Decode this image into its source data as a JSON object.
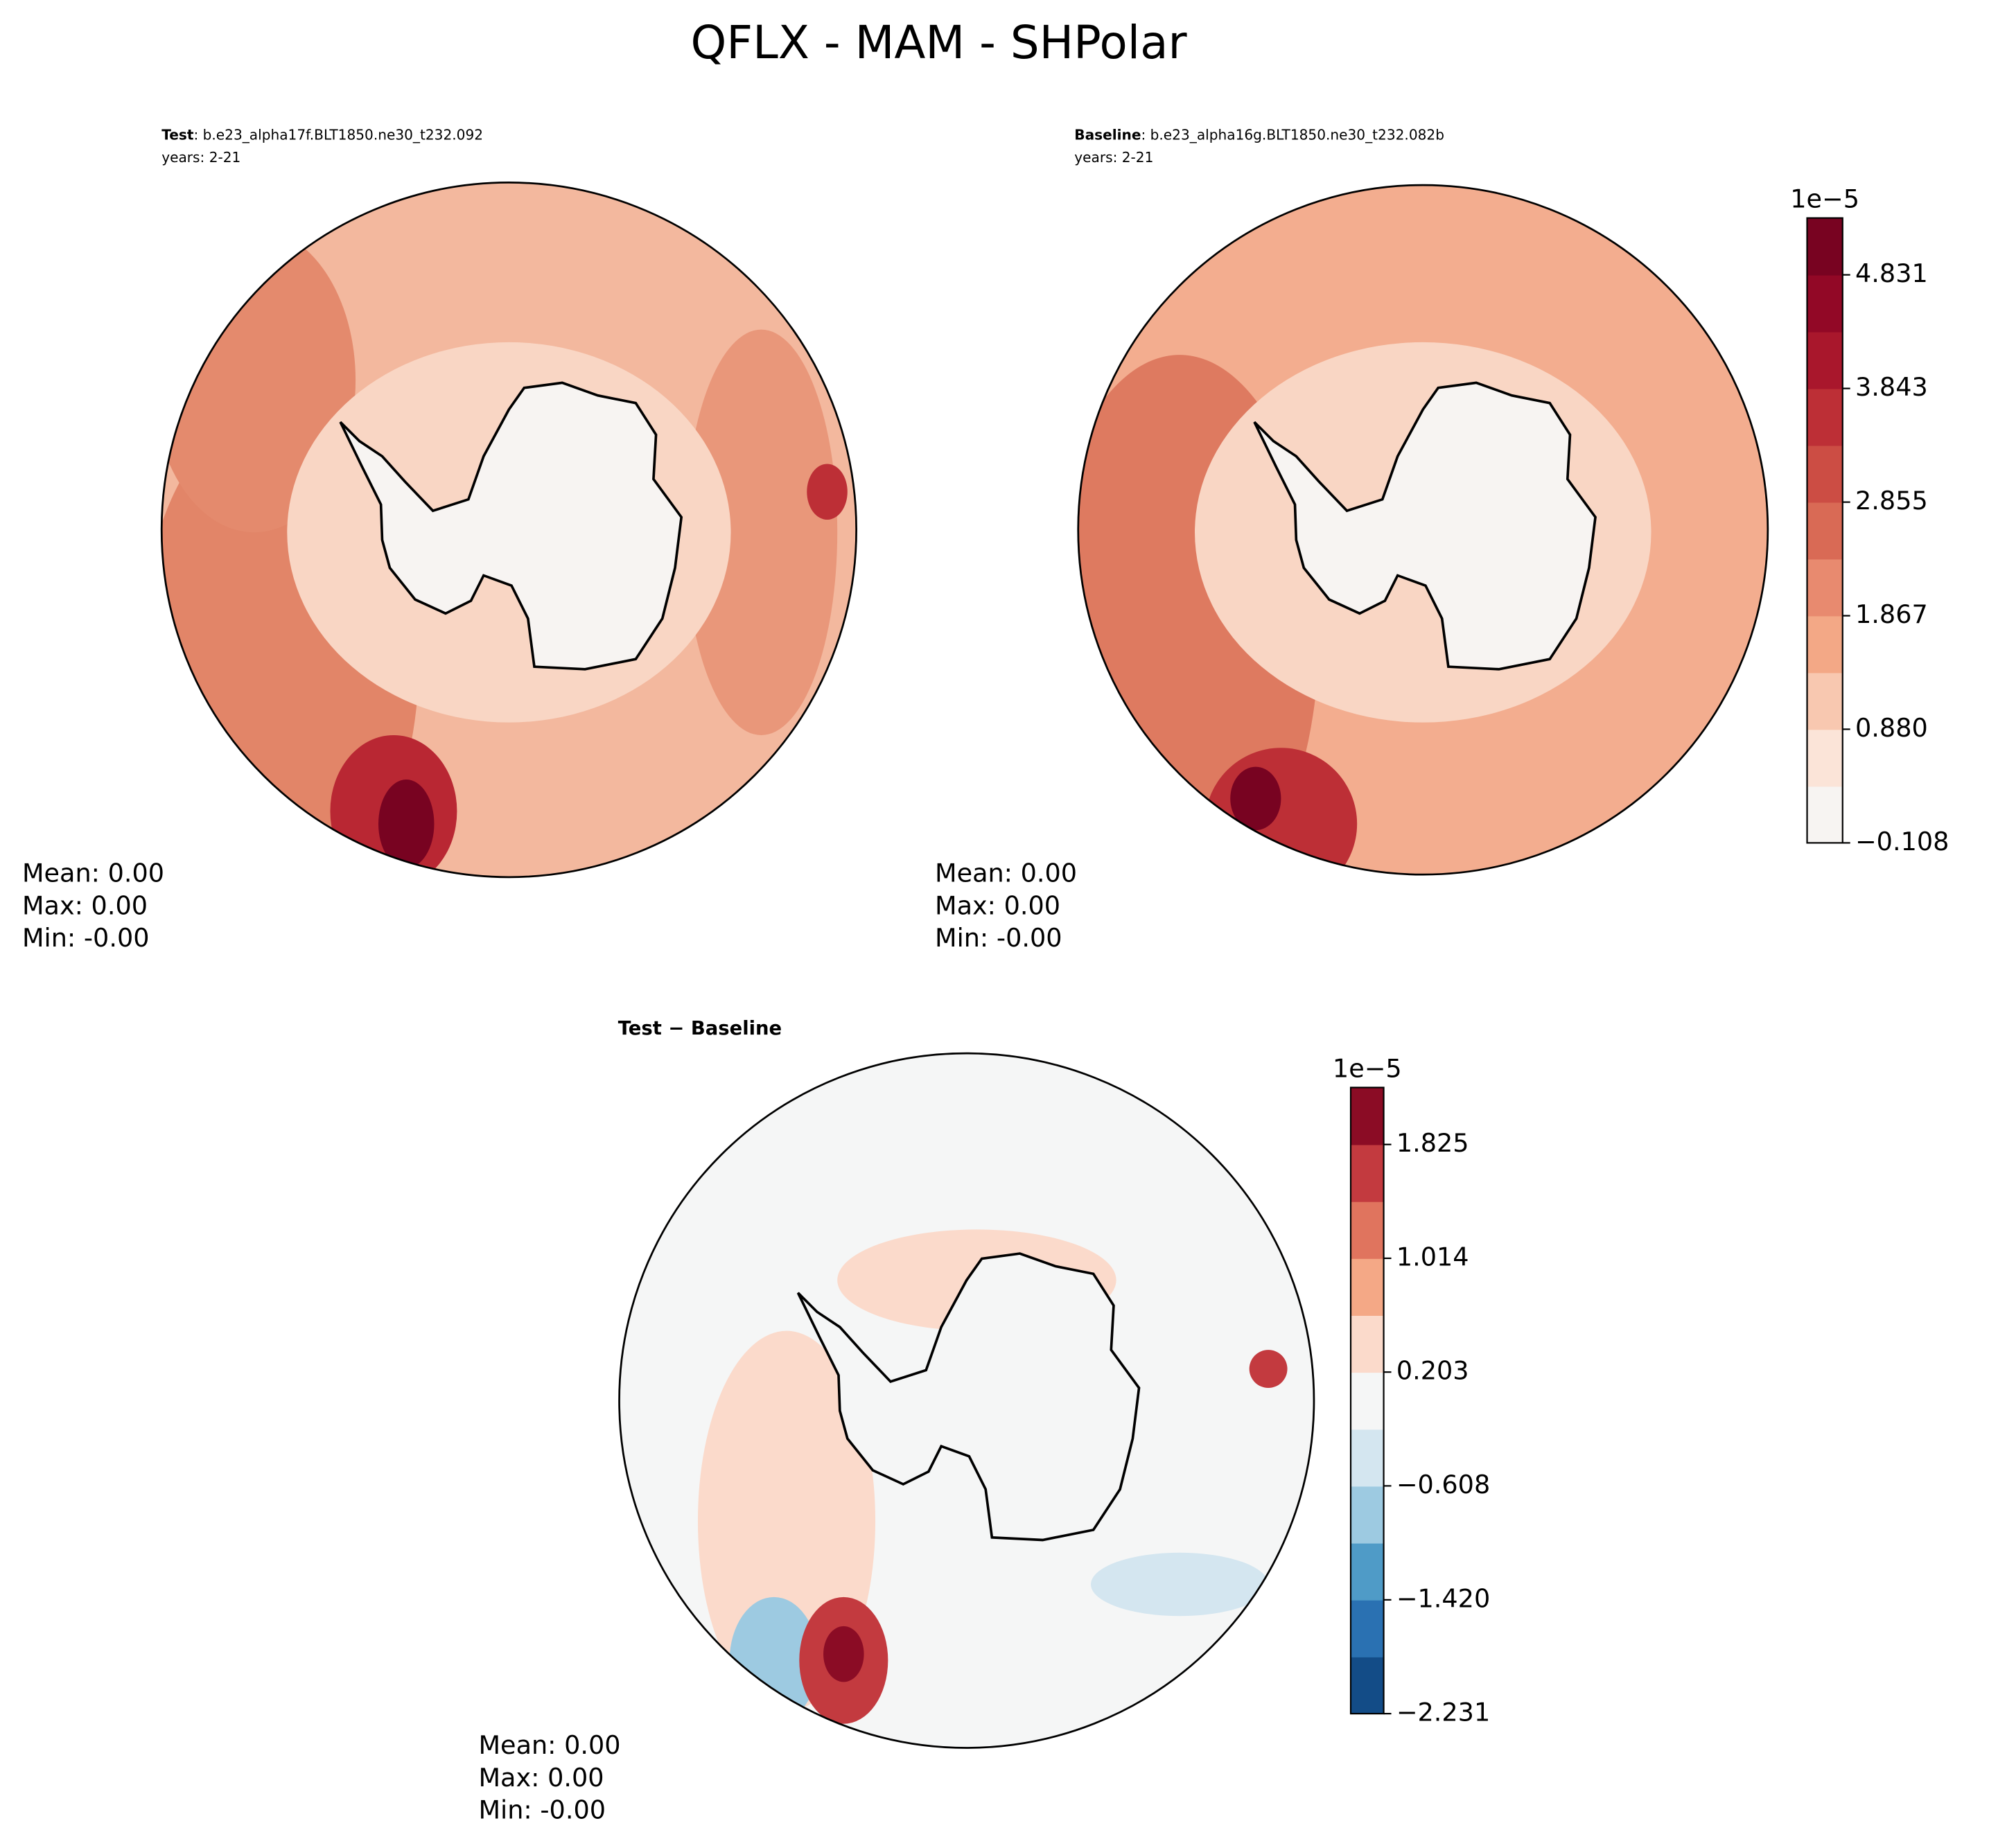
{
  "title": "QFLX - MAM - SHPolar",
  "chart_data": [
    {
      "type": "contour",
      "label": "Test",
      "title": ": b.e23_alpha17f.BLT1850.ne30_t232.092",
      "subtitle": "years: 2-21",
      "stats": [
        "Mean:  0.00",
        "Max:  0.00",
        "Min: -0.00"
      ]
    },
    {
      "type": "contour",
      "label": "Baseline",
      "title": ": b.e23_alpha16g.BLT1850.ne30_t232.082b",
      "subtitle": "years: 2-21",
      "stats": [
        "Mean:  0.00",
        "Max:  0.00",
        "Min: -0.00"
      ],
      "colorbar": {
        "offset_label": "1e−5",
        "ylim": [
          -0.108,
          5.325
        ],
        "yticks": [
          {
            "value": -0.108,
            "label": "−0.108"
          },
          {
            "value": 0.88,
            "label": "0.880"
          },
          1.867,
          2.855,
          3.843,
          4.831
        ],
        "colors": [
          "#f7f4f2",
          "#fbe4d8",
          "#f8c8b0",
          "#f3a886",
          "#e88a6f",
          "#d96a55",
          "#cc4d44",
          "#bd2f36",
          "#a9172c",
          "#920826",
          "#780321"
        ]
      }
    },
    {
      "type": "contour",
      "label": "Test − Baseline",
      "stats": [
        "Mean:  0.00",
        "Max:  0.00",
        "Min: -0.00"
      ],
      "colorbar": {
        "offset_label": "1e−5",
        "ylim": [
          -2.231,
          2.231
        ],
        "yticks": [
          {
            "value": -2.231,
            "label": "−2.231"
          },
          {
            "value": -1.42,
            "label": "−1.420"
          },
          {
            "value": -0.608,
            "label": "−0.608"
          },
          0.203,
          1.014,
          1.825
        ],
        "colors": [
          "#134c87",
          "#2a71b2",
          "#4f9bc7",
          "#9dcae1",
          "#d4e6f0",
          "#f5f6f6",
          "#fbdacb",
          "#f4a886",
          "#e0745e",
          "#c33a3f",
          "#8b0c25"
        ]
      }
    }
  ]
}
